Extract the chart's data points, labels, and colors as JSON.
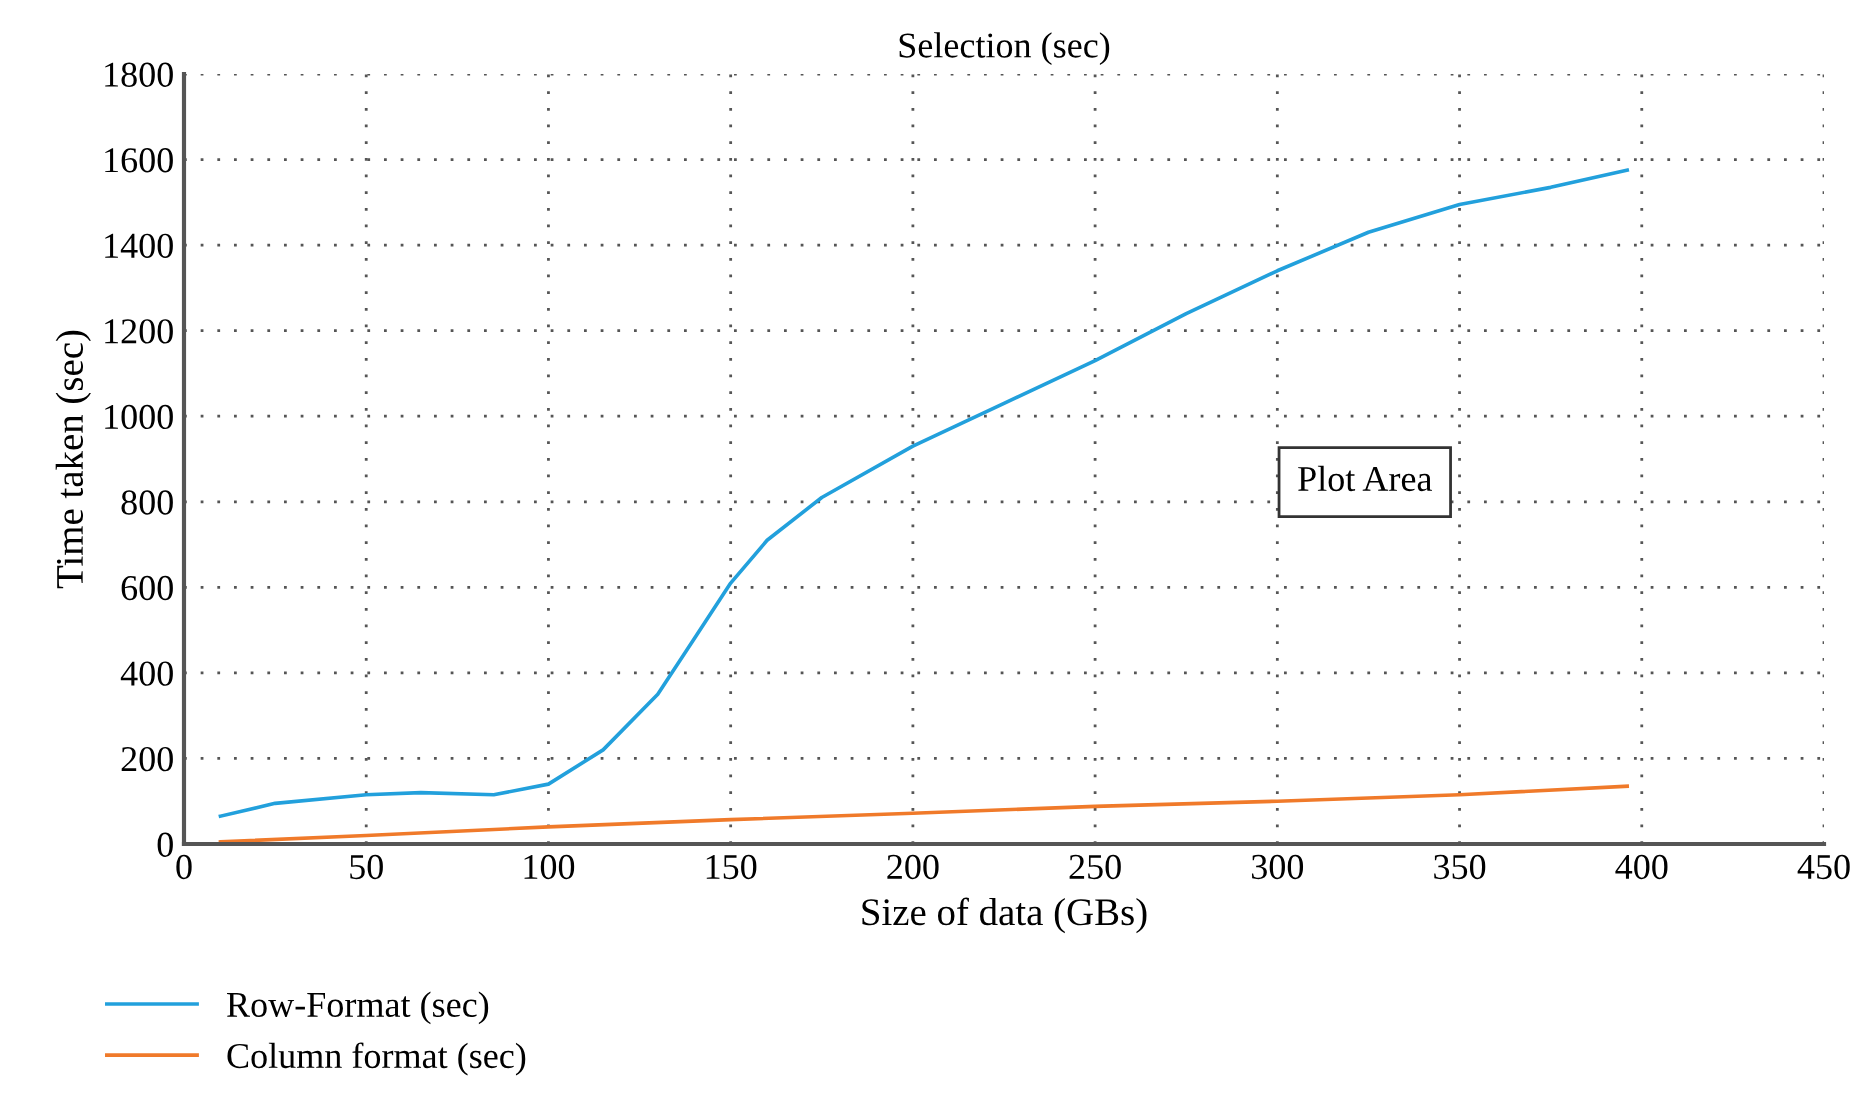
{
  "chart_data": {
    "type": "line",
    "title": "Selection (sec)",
    "xlabel": "Size of data (GBs)",
    "ylabel": "Time taken (sec)",
    "xlim": [
      0,
      450
    ],
    "xticks": [
      0,
      50,
      100,
      150,
      200,
      250,
      300,
      350,
      400,
      450
    ],
    "ylim": [
      0,
      1800
    ],
    "yticks": [
      0,
      200,
      400,
      600,
      800,
      1000,
      1200,
      1400,
      1600,
      1800
    ],
    "grid": true,
    "legend": "bottom left",
    "line_style": "solid",
    "marker": "none",
    "annotations": [
      "Plot Area"
    ],
    "series": [
      {
        "name": "Row-Format (sec)",
        "color": "#22a0dc",
        "x": [
          10,
          25,
          50,
          65,
          85,
          100,
          115,
          130,
          140,
          150,
          160,
          175,
          200,
          225,
          250,
          275,
          300,
          325,
          350,
          375,
          396
        ],
        "values": [
          65,
          95,
          115,
          120,
          115,
          140,
          220,
          350,
          480,
          610,
          710,
          810,
          930,
          1030,
          1130,
          1240,
          1340,
          1430,
          1495,
          1535,
          1575
        ]
      },
      {
        "name": "Column format (sec)",
        "color": "#f07a2a",
        "x": [
          10,
          50,
          100,
          150,
          200,
          250,
          300,
          350,
          396
        ],
        "values": [
          5,
          20,
          40,
          57,
          72,
          88,
          100,
          115,
          135
        ]
      }
    ]
  }
}
